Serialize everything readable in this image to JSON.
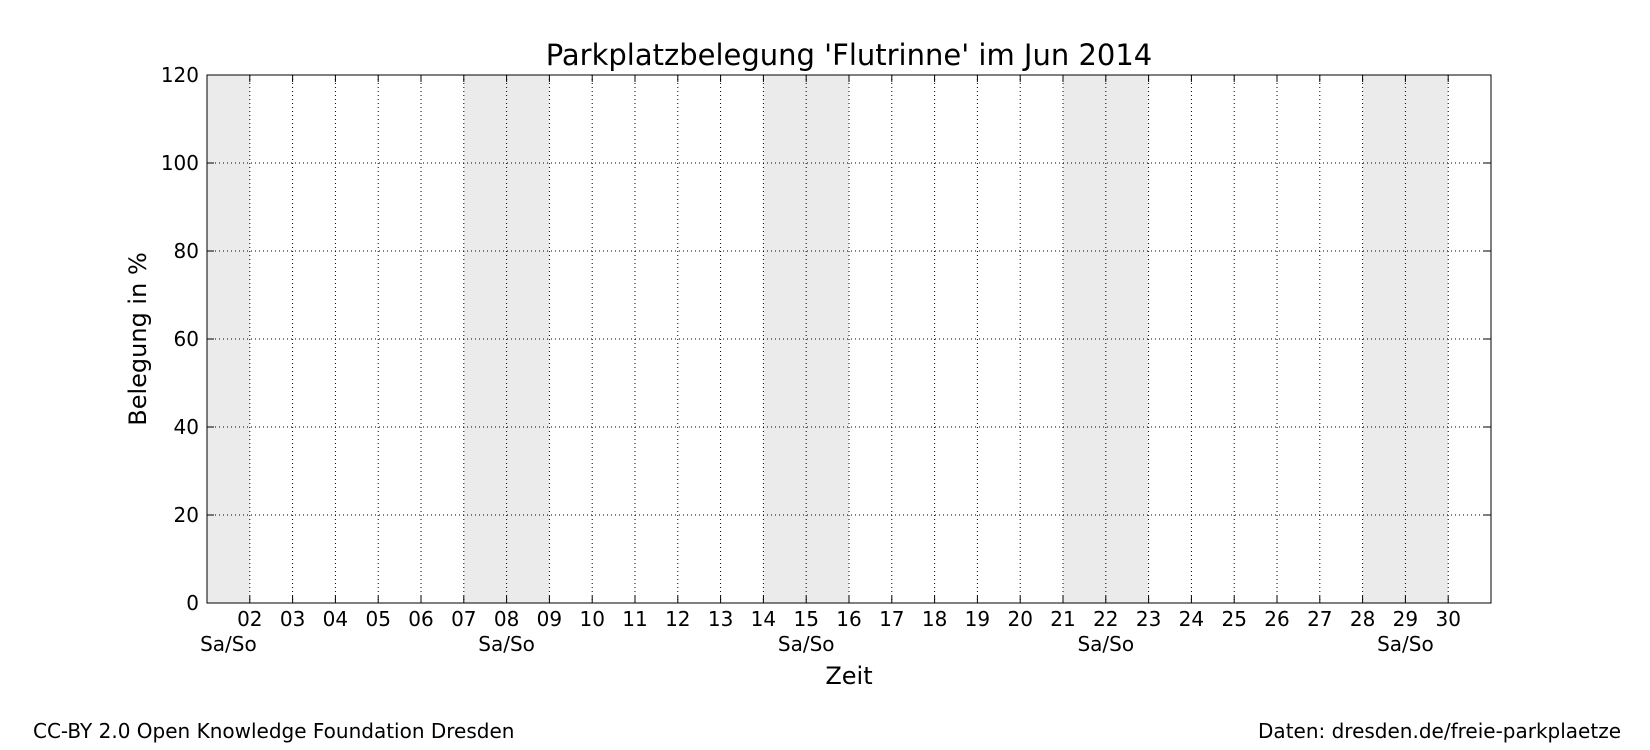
{
  "chart_data": {
    "type": "area",
    "title": "Parkplatzbelegung 'Flutrinne' im Jun 2014",
    "xlabel": "Zeit",
    "ylabel": "Belegung in %",
    "xlim": [
      "2014-06-01",
      "2014-06-30T24:00"
    ],
    "ylim": [
      0,
      120
    ],
    "yticks": [
      0,
      20,
      40,
      60,
      80,
      100,
      120
    ],
    "xtick_labels": [
      "02",
      "03",
      "04",
      "05",
      "06",
      "07",
      "08",
      "09",
      "10",
      "11",
      "12",
      "13",
      "14",
      "15",
      "16",
      "17",
      "18",
      "19",
      "20",
      "21",
      "22",
      "23",
      "24",
      "25",
      "26",
      "27",
      "28",
      "29",
      "30"
    ],
    "weekend_label": "Sa/So",
    "weekends": [
      {
        "start": "2014-06-01",
        "end": "2014-06-02"
      },
      {
        "start": "2014-06-07",
        "end": "2014-06-09"
      },
      {
        "start": "2014-06-14",
        "end": "2014-06-16"
      },
      {
        "start": "2014-06-21",
        "end": "2014-06-23"
      },
      {
        "start": "2014-06-28",
        "end": "2014-06-30"
      }
    ],
    "series": [],
    "grid": true,
    "weekend_color": "#ebebeb"
  },
  "footer": {
    "license": "CC-BY 2.0 Open Knowledge Foundation Dresden",
    "source": "Daten: dresden.de/freie-parkplaetze"
  }
}
